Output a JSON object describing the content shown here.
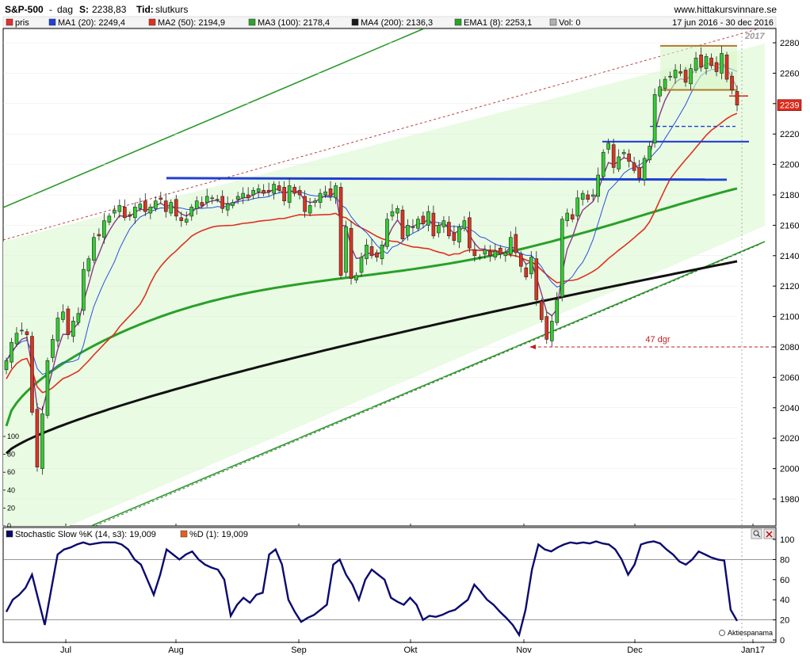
{
  "header": {
    "symbol": "S&P-500",
    "period": "dag",
    "close_label": "S:",
    "close_value": "2238,83",
    "time_label": "Tid:",
    "time_value": "slutkurs",
    "source": "www.hittakursvinnare.se",
    "date_range": "17 jun 2016 - 30 dec 2016"
  },
  "legend": [
    {
      "text": "pris",
      "color": "#e03030"
    },
    {
      "text": "MA1 (20): 2249,4",
      "color": "#1f3fd9"
    },
    {
      "text": "MA2 (50): 2194,9",
      "color": "#e03020"
    },
    {
      "text": "MA3 (100): 2178,4",
      "color": "#30a030"
    },
    {
      "text": "MA4 (200): 2136,3",
      "color": "#1a1a1a"
    },
    {
      "text": "EMA1 (8): 2253,1",
      "color": "#2aa02a"
    },
    {
      "text": "Vol: 0",
      "color": "#b0b0b0"
    }
  ],
  "year_label": "2017",
  "price_badge": "2239",
  "annotation_days": "47 dgr",
  "stoch_legend": [
    {
      "text": "Stochastic Slow %K (14, s3): 19,009",
      "color": "#0a0a60"
    },
    {
      "text": "%D (1): 19,009",
      "color": "#e06020"
    }
  ],
  "watermark": "Aktiespanama",
  "colors": {
    "up": "#33cc33",
    "down": "#dd3322",
    "ma20": "#2a4fe0",
    "ma50": "#e03020",
    "ma100": "#2aa02a",
    "ma200": "#111111",
    "ema8": "#8a3a8a",
    "stoch": "#0a0a70",
    "channel_fill": "#e8fbe0",
    "channel_line": "#2a9a2a",
    "resist": "#2040d0",
    "box": "#b07a2a"
  },
  "chart_data": {
    "type": "candlestick",
    "title": "S&P-500",
    "ylim": [
      1960,
      2290
    ],
    "y_ticks": [
      1980,
      2000,
      2020,
      2040,
      2060,
      2080,
      2100,
      2120,
      2140,
      2160,
      2180,
      2200,
      2220,
      2240,
      2260,
      2280
    ],
    "x_tick_labels": [
      "Jul",
      "Aug",
      "Sep",
      "Okt",
      "Nov",
      "Dec",
      "Jan17"
    ],
    "volume_ticks": [
      "100",
      "80",
      "60",
      "40",
      "20",
      "0"
    ],
    "series": [
      {
        "name": "MA1 (20)",
        "last": 2249.4
      },
      {
        "name": "MA2 (50)",
        "last": 2194.9
      },
      {
        "name": "MA3 (100)",
        "last": 2178.4
      },
      {
        "name": "MA4 (200)",
        "last": 2136.3
      },
      {
        "name": "EMA1 (8)",
        "last": 2253.1
      }
    ],
    "close": [
      2071,
      2083,
      2089,
      2091,
      2088,
      2037,
      2001,
      2036,
      2071,
      2085,
      2099,
      2103,
      2088,
      2097,
      2102,
      2131,
      2138,
      2152,
      2153,
      2163,
      2166,
      2170,
      2173,
      2165,
      2166,
      2172,
      2174,
      2169,
      2172,
      2176,
      2177,
      2169,
      2175,
      2166,
      2163,
      2164,
      2172,
      2176,
      2173,
      2179,
      2178,
      2177,
      2171,
      2174,
      2175,
      2179,
      2181,
      2178,
      2183,
      2184,
      2181,
      2182,
      2187,
      2183,
      2176,
      2186,
      2181,
      2180,
      2169,
      2173,
      2176,
      2181,
      2182,
      2179,
      2186,
      2127,
      2159,
      2125,
      2127,
      2139,
      2147,
      2140,
      2139,
      2147,
      2164,
      2169,
      2171,
      2151,
      2160,
      2159,
      2164,
      2161,
      2169,
      2153,
      2160,
      2163,
      2153,
      2150,
      2159,
      2163,
      2145,
      2140,
      2139,
      2144,
      2140,
      2143,
      2141,
      2142,
      2152,
      2142,
      2133,
      2126,
      2139,
      2111,
      2098,
      2085,
      2097,
      2111,
      2164,
      2168,
      2164,
      2178,
      2181,
      2177,
      2180,
      2193,
      2208,
      2214,
      2198,
      2205,
      2208,
      2202,
      2196,
      2191,
      2204,
      2212,
      2246,
      2251,
      2256,
      2258,
      2262,
      2260,
      2254,
      2263,
      2270,
      2264,
      2271,
      2265,
      2261,
      2273,
      2256,
      2249,
      2239
    ]
  },
  "stochastic": {
    "name": "Stochastic Slow %K (14, s3)",
    "last": 19.009,
    "ylim": [
      0,
      100
    ],
    "y_ticks": [
      0,
      20,
      40,
      60,
      80,
      100
    ],
    "values": [
      28,
      40,
      45,
      52,
      65,
      40,
      15,
      50,
      85,
      90,
      92,
      95,
      97,
      95,
      96,
      97,
      97,
      97,
      95,
      90,
      80,
      75,
      60,
      45,
      65,
      90,
      85,
      80,
      85,
      88,
      80,
      75,
      72,
      70,
      60,
      24,
      35,
      42,
      37,
      45,
      47,
      85,
      90,
      75,
      40,
      28,
      18,
      22,
      25,
      30,
      35,
      75,
      80,
      65,
      55,
      40,
      60,
      70,
      65,
      60,
      42,
      38,
      35,
      42,
      35,
      20,
      24,
      23,
      25,
      28,
      30,
      35,
      40,
      55,
      48,
      40,
      35,
      28,
      22,
      15,
      5,
      30,
      70,
      95,
      90,
      88,
      92,
      95,
      97,
      96,
      97,
      96,
      98,
      96,
      95,
      90,
      80,
      65,
      75,
      95,
      97,
      98,
      96,
      90,
      85,
      78,
      75,
      80,
      88,
      85,
      82,
      80,
      79,
      30,
      19
    ]
  }
}
